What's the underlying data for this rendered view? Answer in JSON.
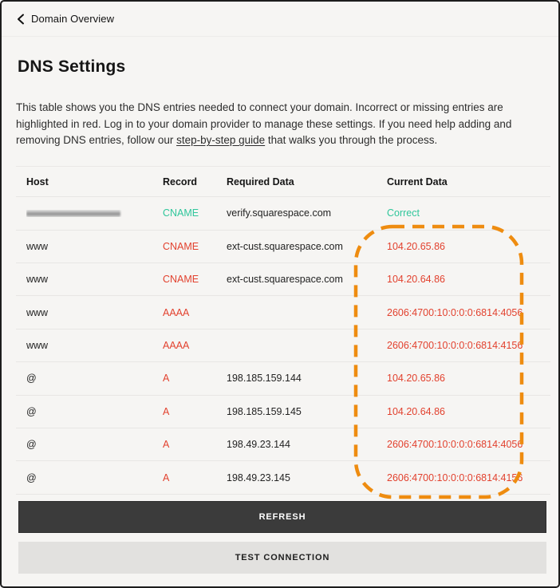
{
  "topbar": {
    "back_label": "Domain Overview"
  },
  "page": {
    "title": "DNS Settings"
  },
  "description": {
    "text_before_link": "This table shows you the DNS entries needed to connect your domain. Incorrect or missing entries are highlighted in red. Log in to your domain provider to manage these settings. If you need help adding and removing DNS entries, follow our ",
    "link_text": "step-by-step guide",
    "text_after_link": " that walks you through the process."
  },
  "table": {
    "columns": {
      "host": "Host",
      "record": "Record",
      "required": "Required Data",
      "current": "Current Data"
    },
    "rows": [
      {
        "host": "",
        "host_redacted": true,
        "record": "CNAME",
        "record_status": "ok",
        "required": "verify.squarespace.com",
        "current": "Correct",
        "current_status": "ok"
      },
      {
        "host": "www",
        "host_redacted": false,
        "record": "CNAME",
        "record_status": "error",
        "required": "ext-cust.squarespace.com",
        "current": "104.20.65.86",
        "current_status": "error"
      },
      {
        "host": "www",
        "host_redacted": false,
        "record": "CNAME",
        "record_status": "error",
        "required": "ext-cust.squarespace.com",
        "current": "104.20.64.86",
        "current_status": "error"
      },
      {
        "host": "www",
        "host_redacted": false,
        "record": "AAAA",
        "record_status": "error",
        "required": "",
        "current": "2606:4700:10:0:0:0:6814:4056",
        "current_status": "error"
      },
      {
        "host": "www",
        "host_redacted": false,
        "record": "AAAA",
        "record_status": "error",
        "required": "",
        "current": "2606:4700:10:0:0:0:6814:4156",
        "current_status": "error"
      },
      {
        "host": "@",
        "host_redacted": false,
        "record": "A",
        "record_status": "error",
        "required": "198.185.159.144",
        "current": "104.20.65.86",
        "current_status": "error"
      },
      {
        "host": "@",
        "host_redacted": false,
        "record": "A",
        "record_status": "error",
        "required": "198.185.159.145",
        "current": "104.20.64.86",
        "current_status": "error"
      },
      {
        "host": "@",
        "host_redacted": false,
        "record": "A",
        "record_status": "error",
        "required": "198.49.23.144",
        "current": "2606:4700:10:0:0:0:6814:4056",
        "current_status": "error"
      },
      {
        "host": "@",
        "host_redacted": false,
        "record": "A",
        "record_status": "error",
        "required": "198.49.23.145",
        "current": "2606:4700:10:0:0:0:6814:4156",
        "current_status": "error"
      }
    ]
  },
  "buttons": {
    "refresh": "REFRESH",
    "test_connection": "TEST CONNECTION"
  },
  "colors": {
    "ok_green": "#2fc69b",
    "error_red": "#e2412e",
    "highlight_orange": "#ee8c10",
    "refresh_button_bg": "#3b3b3b"
  }
}
